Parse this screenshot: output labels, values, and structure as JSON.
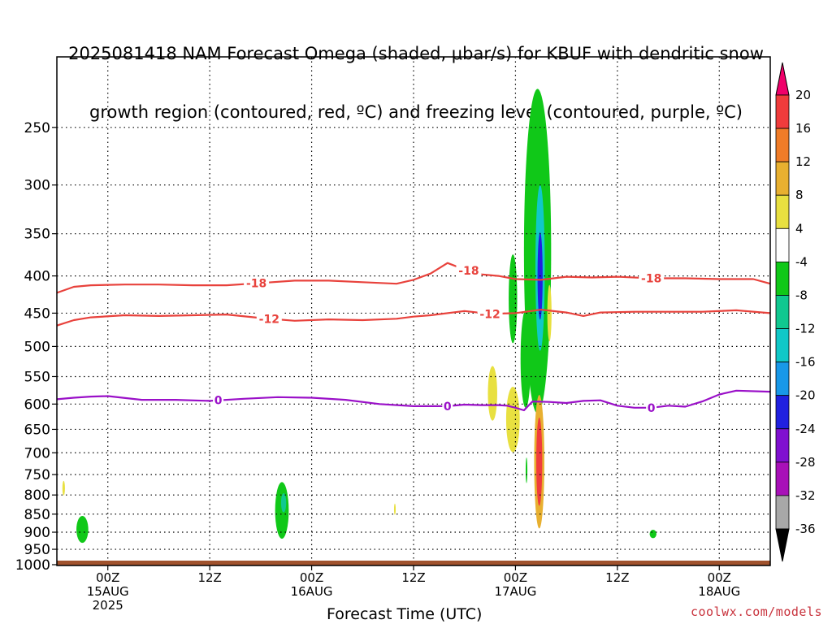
{
  "title": {
    "line1": "2025081418 NAM Forecast Omega (shaded, μbar/s) for KBUF with dendritic snow",
    "line2": "growth region (contoured, red, ºC) and freezing level (contoured, purple, ºC)"
  },
  "credit": "coolwx.com/models",
  "colors": {
    "dgz_contour": "#e8423c",
    "freezing_contour": "#9a10c8",
    "ground": "#a0522d"
  },
  "chart_data": {
    "type": "heatmap",
    "xlabel": "Forecast Time (UTC)",
    "ylabel": "",
    "x_hours_range": [
      0,
      84
    ],
    "y_pressure_range": [
      200,
      1000
    ],
    "y_axis_log": true,
    "grid": true,
    "y_ticks": [
      250,
      300,
      350,
      400,
      450,
      500,
      550,
      600,
      650,
      700,
      750,
      800,
      850,
      900,
      950,
      1000
    ],
    "x_ticks": [
      {
        "hour": 6,
        "lines": [
          "00Z",
          "15AUG",
          "2025"
        ]
      },
      {
        "hour": 18,
        "lines": [
          "12Z"
        ]
      },
      {
        "hour": 30,
        "lines": [
          "00Z",
          "16AUG"
        ]
      },
      {
        "hour": 42,
        "lines": [
          "12Z"
        ]
      },
      {
        "hour": 54,
        "lines": [
          "00Z",
          "17AUG"
        ]
      },
      {
        "hour": 66,
        "lines": [
          "12Z"
        ]
      },
      {
        "hour": 78,
        "lines": [
          "00Z",
          "18AUG"
        ]
      }
    ],
    "contours": [
      {
        "label": "-18",
        "points": [
          [
            0,
            422
          ],
          [
            2,
            414
          ],
          [
            4,
            412
          ],
          [
            8,
            411
          ],
          [
            12,
            411
          ],
          [
            16,
            412
          ],
          [
            20,
            412
          ],
          [
            24,
            409
          ],
          [
            28,
            406
          ],
          [
            32,
            406
          ],
          [
            36,
            408
          ],
          [
            40,
            410
          ],
          [
            42,
            405
          ],
          [
            44,
            397
          ],
          [
            46,
            384
          ],
          [
            48,
            392
          ],
          [
            50,
            398
          ],
          [
            52,
            400
          ],
          [
            54,
            404
          ],
          [
            57,
            405
          ],
          [
            60,
            401
          ],
          [
            63,
            402
          ],
          [
            66,
            401
          ],
          [
            70,
            403
          ],
          [
            74,
            403
          ],
          [
            78,
            404
          ],
          [
            82,
            404
          ],
          [
            84,
            410
          ]
        ],
        "labels_at": [
          23.5,
          48.5,
          70
        ]
      },
      {
        "label": "-12",
        "points": [
          [
            0,
            468
          ],
          [
            2,
            460
          ],
          [
            4,
            456
          ],
          [
            8,
            453
          ],
          [
            12,
            454
          ],
          [
            16,
            453
          ],
          [
            20,
            452
          ],
          [
            24,
            457
          ],
          [
            28,
            461
          ],
          [
            32,
            459
          ],
          [
            36,
            460
          ],
          [
            40,
            458
          ],
          [
            42,
            455
          ],
          [
            44,
            453
          ],
          [
            48,
            447
          ],
          [
            51,
            451
          ],
          [
            54,
            450
          ],
          [
            57,
            445
          ],
          [
            60,
            449
          ],
          [
            62,
            454
          ],
          [
            64,
            449
          ],
          [
            68,
            448
          ],
          [
            72,
            448
          ],
          [
            76,
            448
          ],
          [
            80,
            446
          ],
          [
            84,
            450
          ]
        ],
        "labels_at": [
          25,
          51
        ]
      },
      {
        "label": "0",
        "points": [
          [
            0,
            591
          ],
          [
            2,
            588
          ],
          [
            4,
            586
          ],
          [
            6,
            585
          ],
          [
            10,
            592
          ],
          [
            14,
            592
          ],
          [
            18,
            594
          ],
          [
            22,
            590
          ],
          [
            26,
            587
          ],
          [
            30,
            588
          ],
          [
            34,
            592
          ],
          [
            38,
            600
          ],
          [
            42,
            604
          ],
          [
            46,
            604
          ],
          [
            48,
            601
          ],
          [
            50,
            602
          ],
          [
            52,
            602
          ],
          [
            53,
            603
          ],
          [
            54,
            607
          ],
          [
            55,
            612
          ],
          [
            56,
            595
          ],
          [
            58,
            596
          ],
          [
            60,
            598
          ],
          [
            62,
            594
          ],
          [
            64,
            593
          ],
          [
            66,
            603
          ],
          [
            68,
            607
          ],
          [
            70,
            607
          ],
          [
            72,
            603
          ],
          [
            74,
            605
          ],
          [
            76,
            595
          ],
          [
            78,
            582
          ],
          [
            80,
            575
          ],
          [
            84,
            577
          ]
        ],
        "labels_at": [
          19,
          46,
          70
        ]
      }
    ],
    "omega_blobs": [
      {
        "t": 3,
        "p": 892,
        "dt": 0.7,
        "dp": 38,
        "value": -6
      },
      {
        "t": 0.8,
        "p": 783,
        "dt": 0.15,
        "dp": 18,
        "value": 5
      },
      {
        "t": 26.5,
        "p": 840,
        "dt": 0.8,
        "dp": 75,
        "value": -7
      },
      {
        "t": 26.7,
        "p": 820,
        "dt": 0.3,
        "dp": 25,
        "value": -10
      },
      {
        "t": 39.8,
        "p": 837,
        "dt": 0.1,
        "dp": 15,
        "value": 5
      },
      {
        "t": 51.3,
        "p": 580,
        "dt": 0.55,
        "dp": 50,
        "value": 5
      },
      {
        "t": 53.7,
        "p": 630,
        "dt": 0.8,
        "dp": 65,
        "value": 5
      },
      {
        "t": 53.7,
        "p": 430,
        "dt": 0.5,
        "dp": 60,
        "value": -6
      },
      {
        "t": 56.6,
        "p": 370,
        "dt": 1.6,
        "dp": 175,
        "value": -8
      },
      {
        "t": 56.9,
        "p": 390,
        "dt": 0.55,
        "dp": 100,
        "value": -16
      },
      {
        "t": 56.9,
        "p": 400,
        "dt": 0.3,
        "dp": 55,
        "value": -22
      },
      {
        "t": 55.2,
        "p": 520,
        "dt": 0.6,
        "dp": 80,
        "value": -6
      },
      {
        "t": 58.0,
        "p": 450,
        "dt": 0.25,
        "dp": 40,
        "value": 5
      },
      {
        "t": 56.8,
        "p": 720,
        "dt": 0.6,
        "dp": 150,
        "value": 10
      },
      {
        "t": 56.8,
        "p": 720,
        "dt": 0.35,
        "dp": 100,
        "value": 18
      },
      {
        "t": 55.3,
        "p": 740,
        "dt": 0.1,
        "dp": 30,
        "value": -7
      },
      {
        "t": 70.2,
        "p": 905,
        "dt": 0.4,
        "dp": 12,
        "value": -6
      }
    ],
    "colorbar": {
      "levels": [
        20,
        16,
        12,
        8,
        4,
        -4,
        -8,
        -12,
        -16,
        -20,
        -24,
        -28,
        -32,
        -36
      ],
      "colors": [
        "#f0006a",
        "#f03c3c",
        "#f07c28",
        "#e8b030",
        "#e8e040",
        "#ffffff",
        "#10c818",
        "#10c890",
        "#10c8c8",
        "#1898e8",
        "#2020e0",
        "#8010d0",
        "#a810b8",
        "#a8a8a8",
        "#000000"
      ]
    }
  }
}
